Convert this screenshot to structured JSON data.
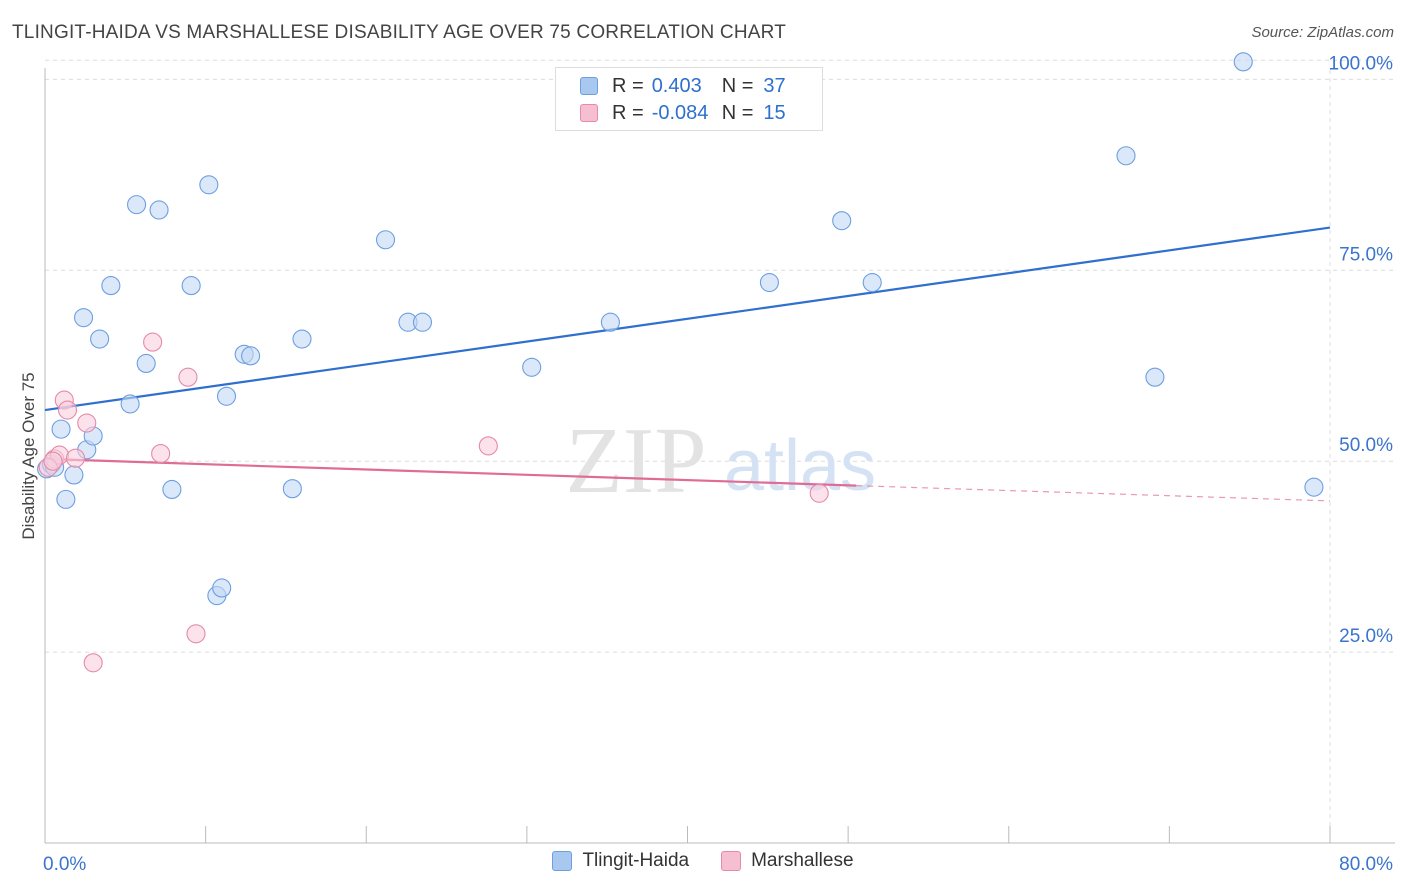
{
  "header": {
    "title": "TLINGIT-HAIDA VS MARSHALLESE DISABILITY AGE OVER 75 CORRELATION CHART",
    "source": "Source: ZipAtlas.com"
  },
  "legend": {
    "series": [
      {
        "r_label": "R =",
        "r_value": "0.403",
        "n_label": "N =",
        "n_value": "37",
        "color": "#a9c8f0",
        "border": "#6d9fe0"
      },
      {
        "r_label": "R =",
        "r_value": "-0.084",
        "n_label": "N =",
        "n_value": "15",
        "color": "#f6bfd1",
        "border": "#e58aa9"
      }
    ],
    "bottom": [
      "Tlingit-Haida",
      "Marshallese"
    ]
  },
  "watermark": {
    "zip": "ZIP",
    "atlas": "atlas"
  },
  "chart_data": {
    "type": "scatter",
    "ylabel": "Disability Age Over 75",
    "xlabel": "",
    "xlim": [
      0,
      80
    ],
    "ylim": [
      0,
      105
    ],
    "x_tick_labels": [
      {
        "value": 0,
        "label": "0.0%"
      },
      {
        "value": 80,
        "label": "80.0%"
      }
    ],
    "y_tick_labels": [
      {
        "value": 25,
        "label": "25.0%"
      },
      {
        "value": 50,
        "label": "50.0%"
      },
      {
        "value": 75,
        "label": "75.0%"
      },
      {
        "value": 100,
        "label": "100.0%"
      }
    ],
    "grid": true,
    "series": [
      {
        "name": "Tlingit-Haida",
        "color": "#6d9fe0",
        "fill": "#c3d9f5",
        "trend": {
          "x0": 0,
          "y0": 56.7,
          "x1": 80,
          "y1": 80.6,
          "color": "#2f6fce"
        },
        "points": [
          [
            0.1,
            49.0
          ],
          [
            0.4,
            49.6
          ],
          [
            0.6,
            49.2
          ],
          [
            1.0,
            54.2
          ],
          [
            1.3,
            45.0
          ],
          [
            1.8,
            48.2
          ],
          [
            2.4,
            68.8
          ],
          [
            2.6,
            51.5
          ],
          [
            3.0,
            53.3
          ],
          [
            3.4,
            66.0
          ],
          [
            4.1,
            73.0
          ],
          [
            5.3,
            57.5
          ],
          [
            5.7,
            83.6
          ],
          [
            6.3,
            62.8
          ],
          [
            7.1,
            82.9
          ],
          [
            7.9,
            46.3
          ],
          [
            9.1,
            73.0
          ],
          [
            10.2,
            86.2
          ],
          [
            10.7,
            32.4
          ],
          [
            11.0,
            33.4
          ],
          [
            11.3,
            58.5
          ],
          [
            12.4,
            64.0
          ],
          [
            12.8,
            63.8
          ],
          [
            15.4,
            46.4
          ],
          [
            16.0,
            66.0
          ],
          [
            21.2,
            79.0
          ],
          [
            22.6,
            68.2
          ],
          [
            23.5,
            68.2
          ],
          [
            30.3,
            62.3
          ],
          [
            35.2,
            68.2
          ],
          [
            45.1,
            73.4
          ],
          [
            49.6,
            81.5
          ],
          [
            51.5,
            73.4
          ],
          [
            67.3,
            90.0
          ],
          [
            69.1,
            61.0
          ],
          [
            74.6,
            102.3
          ],
          [
            79.0,
            46.6
          ]
        ]
      },
      {
        "name": "Marshallese",
        "color": "#e58aa9",
        "fill": "#f9cedd",
        "trend": {
          "x0": 0,
          "y0": 50.3,
          "x1": 50.5,
          "y1": 46.8,
          "color": "#e06c96",
          "dash_x1": 80,
          "dash_y1": 44.8
        },
        "points": [
          [
            0.6,
            50.3
          ],
          [
            0.9,
            50.8
          ],
          [
            1.2,
            58.0
          ],
          [
            1.4,
            56.7
          ],
          [
            1.9,
            50.4
          ],
          [
            2.6,
            55.0
          ],
          [
            3.0,
            23.6
          ],
          [
            6.7,
            65.6
          ],
          [
            7.2,
            51.0
          ],
          [
            8.9,
            61.0
          ],
          [
            9.4,
            27.4
          ],
          [
            27.6,
            52.0
          ],
          [
            48.2,
            45.8
          ],
          [
            0.2,
            49.2
          ],
          [
            0.5,
            50.0
          ]
        ]
      }
    ]
  }
}
